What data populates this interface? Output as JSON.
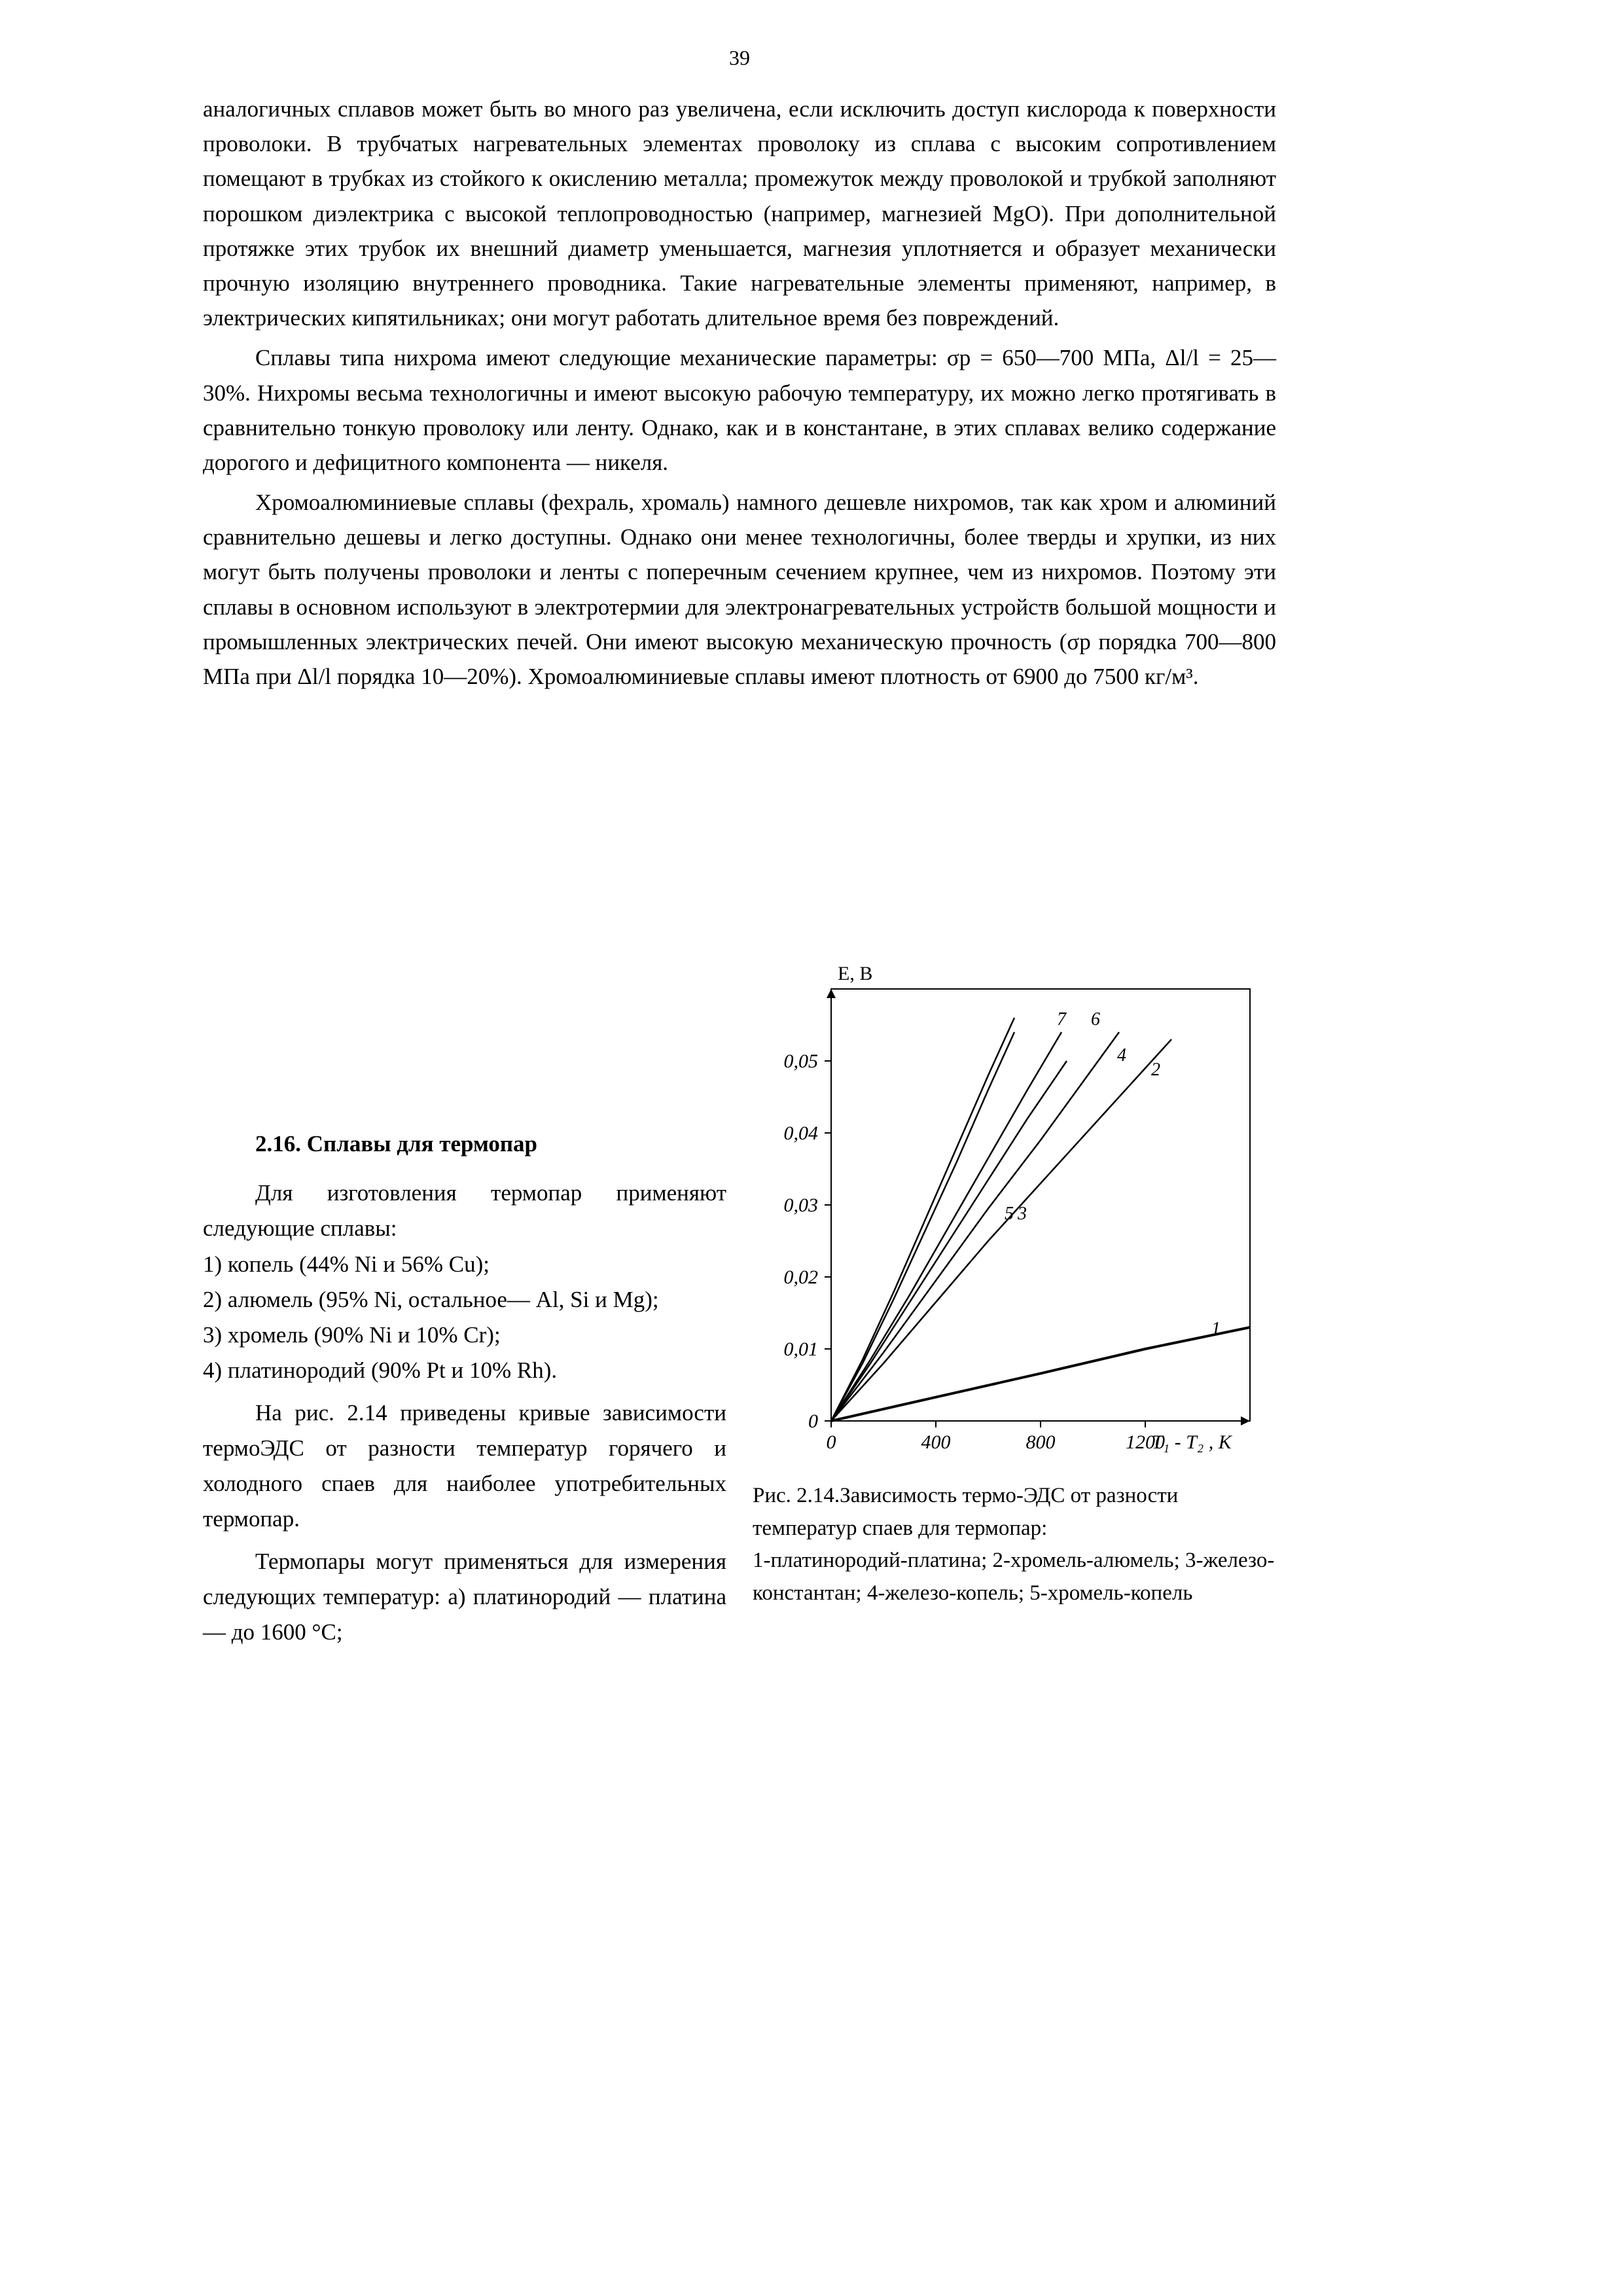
{
  "page_number": "39",
  "paragraphs": {
    "p1": "аналогичных сплавов может быть во много раз увеличена, если исключить доступ кислорода к поверхности проволоки. В трубчатых нагревательных элементах проволоку из сплава с высоким сопротивлением помещают в трубках из стойкого к окислению металла; промежуток между проволокой и трубкой заполняют порошком диэлектрика с высокой теплопроводностью (например, магнезией MgO). При дополнительной протяжке этих трубок их внешний диаметр уменьшается, магнезия уплотняется и образует механически прочную изоляцию внутреннего проводника. Такие нагревательные элементы применяют, например, в электрических кипятильниках; они могут работать длительное время без повреждений.",
    "p2": "Сплавы типа нихрома имеют следующие механические параметры: σр = 650—700 МПа, Δl/l = 25—30%. Нихромы весьма технологичны и имеют высокую рабочую температуру, их можно легко протягивать в сравнительно тонкую проволоку или ленту. Однако, как и в константане, в этих сплавах велико содержание дорогого и дефицитного компонента — никеля.",
    "p3": "Хромоалюминиевые сплавы (фехраль, хромаль) намного дешевле нихромов, так как хром и алюминий сравнительно дешевы и легко доступны. Однако они менее технологичны, более тверды и хрупки, из них могут быть получены проволоки и ленты с поперечным сечением крупнее, чем из нихромов. Поэтому эти сплавы в основном используют в электротермии для электронагревательных устройств большой мощности и промышленных электрических печей. Они имеют высокую механическую прочность (σр порядка 700—800 МПа при Δl/l порядка 10—20%). Хромоалюминиевые сплавы имеют плотность от 6900 до 7500 кг/м³."
  },
  "section_heading": "2.16. Сплавы для термопар",
  "list_intro": "Для изготовления термопар применяют следующие сплавы:",
  "list_items": {
    "i1": "1) копель (44% Ni  и  56% Cu);",
    "i2": "2) алюмель (95% Ni, остальное— Al, Si  и Mg);",
    "i3": "3) хромель (90% Ni  и 10% Cr);",
    "i4": "4) платинородий (90% Pt и 10% Rh)."
  },
  "after_list": {
    "p4": "На рис. 2.14 приведены кривые зависимости термоЭДС от разности температур горячего и холодного спаев для наиболее употребительных термопар.",
    "p5": "Термопары могут применяться для измерения следующих температур: а) платинородий — платина — до 1600 °С;"
  },
  "chart": {
    "type": "line",
    "background_color": "#ffffff",
    "axis_color": "#000000",
    "line_color": "#000000",
    "line_width": 2.5,
    "heavy_line_width": 4,
    "font_size_ticks": 30,
    "font_size_axis_label": 30,
    "y_label": "Е, В",
    "x_label": "T₁ - T₂ ,  K",
    "xlim": [
      0,
      1600
    ],
    "ylim": [
      0,
      0.06
    ],
    "x_ticks": [
      0,
      400,
      800,
      1200
    ],
    "x_tick_labels": [
      "0",
      "400",
      "800",
      "1200"
    ],
    "y_ticks": [
      0,
      0.01,
      0.02,
      0.03,
      0.04,
      0.05
    ],
    "y_tick_labels": [
      "0",
      "0,01",
      "0,02",
      "0,03",
      "0,04",
      "0,05"
    ],
    "series": [
      {
        "name": "1",
        "label_pos": [
          1470,
          0.012
        ],
        "points": [
          [
            0,
            0
          ],
          [
            400,
            0.0033
          ],
          [
            800,
            0.0066
          ],
          [
            1200,
            0.01
          ],
          [
            1600,
            0.013
          ]
        ],
        "width": 4
      },
      {
        "name": "2",
        "label_pos": [
          1240,
          0.048
        ],
        "points": [
          [
            0,
            0
          ],
          [
            200,
            0.008
          ],
          [
            400,
            0.0165
          ],
          [
            600,
            0.025
          ],
          [
            800,
            0.033
          ],
          [
            1000,
            0.041
          ],
          [
            1200,
            0.049
          ],
          [
            1300,
            0.053
          ]
        ],
        "width": 2.5
      },
      {
        "name": "3",
        "label_pos": [
          730,
          0.028
        ],
        "points": [
          [
            0,
            0
          ],
          [
            150,
            0.008
          ],
          [
            300,
            0.0165
          ],
          [
            450,
            0.025
          ],
          [
            600,
            0.0335
          ],
          [
            750,
            0.042
          ],
          [
            900,
            0.05
          ]
        ],
        "width": 2.5
      },
      {
        "name": "4",
        "label_pos": [
          1110,
          0.05
        ],
        "points": [
          [
            0,
            0
          ],
          [
            200,
            0.0095
          ],
          [
            400,
            0.0195
          ],
          [
            600,
            0.0295
          ],
          [
            800,
            0.039
          ],
          [
            1000,
            0.049
          ],
          [
            1100,
            0.054
          ]
        ],
        "width": 2.5
      },
      {
        "name": "5",
        "label_pos": [
          680,
          0.028
        ],
        "points": [
          [
            0,
            0
          ],
          [
            120,
            0.008
          ],
          [
            240,
            0.017
          ],
          [
            360,
            0.0265
          ],
          [
            480,
            0.036
          ],
          [
            600,
            0.046
          ],
          [
            700,
            0.054
          ]
        ],
        "width": 2.5
      },
      {
        "name": "6",
        "label_pos": [
          1010,
          0.055
        ],
        "points": [
          [
            0,
            0
          ],
          [
            150,
            0.0085
          ],
          [
            300,
            0.0175
          ],
          [
            450,
            0.027
          ],
          [
            600,
            0.0365
          ],
          [
            750,
            0.046
          ],
          [
            880,
            0.054
          ]
        ],
        "width": 2.5
      },
      {
        "name": "7",
        "label_pos": [
          880,
          0.055
        ],
        "points": [
          [
            0,
            0
          ],
          [
            120,
            0.0085
          ],
          [
            240,
            0.018
          ],
          [
            360,
            0.028
          ],
          [
            480,
            0.038
          ],
          [
            600,
            0.048
          ],
          [
            700,
            0.056
          ]
        ],
        "width": 2.5
      }
    ],
    "label_markers": {
      "1": "1",
      "2": "2",
      "3": "3",
      "4": "4",
      "6": "6",
      "7": "7"
    }
  },
  "caption": {
    "line1": "Рис. 2.14.Зависимость термо-ЭДС от разности температур спаев для термопар:",
    "line2": "1-платинородий-платина; 2-хромель-алюмель; 3-железо-константан; 4-железо-копель; 5-хромель-копель"
  }
}
